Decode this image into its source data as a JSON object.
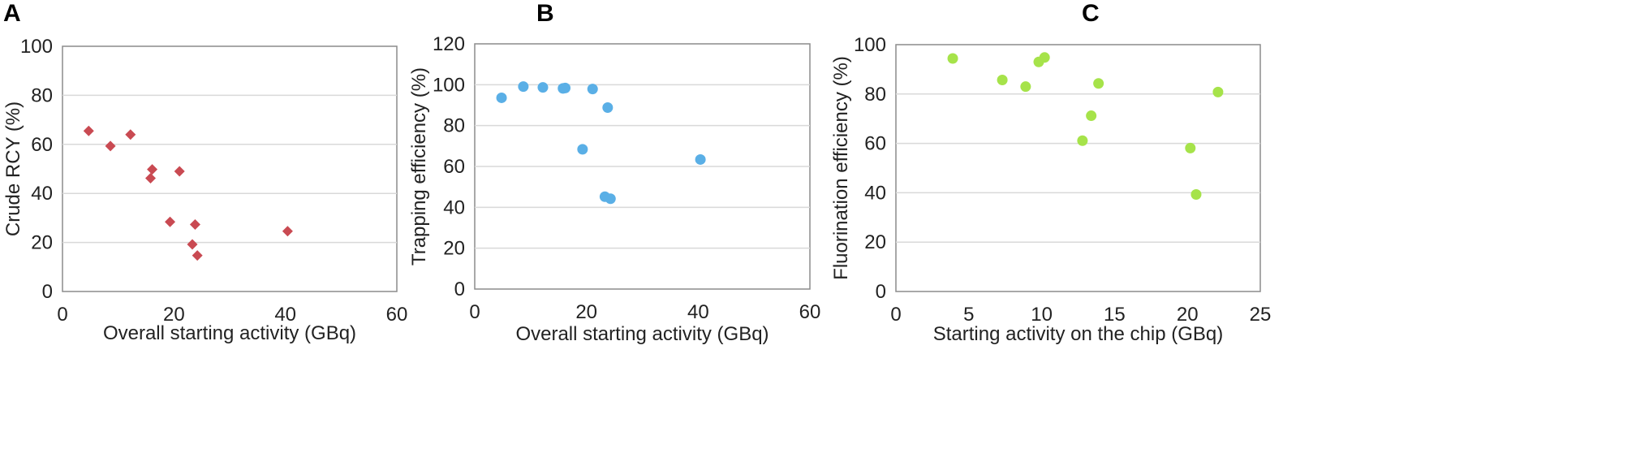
{
  "chart_data": [
    {
      "panel": "A",
      "type": "scatter",
      "marker": "diamond",
      "color": "#c94a52",
      "xlabel": "Overall starting activity (GBq)",
      "ylabel": "Crude RCY (%)",
      "xlim": [
        0,
        60
      ],
      "ylim": [
        0,
        100
      ],
      "xticks": [
        0,
        20,
        40,
        60
      ],
      "yticks": [
        0,
        20,
        40,
        60,
        80,
        100
      ],
      "grid": "horizontal",
      "points": [
        {
          "x": 4.7,
          "y": 65.5
        },
        {
          "x": 8.6,
          "y": 59.3
        },
        {
          "x": 12.2,
          "y": 64.0
        },
        {
          "x": 16.1,
          "y": 49.8
        },
        {
          "x": 15.8,
          "y": 46.2
        },
        {
          "x": 21.0,
          "y": 49.0
        },
        {
          "x": 19.3,
          "y": 28.4
        },
        {
          "x": 23.8,
          "y": 27.3
        },
        {
          "x": 23.3,
          "y": 19.2
        },
        {
          "x": 24.2,
          "y": 14.7
        },
        {
          "x": 40.4,
          "y": 24.6
        }
      ]
    },
    {
      "panel": "B",
      "type": "scatter",
      "marker": "circle",
      "color": "#5aafe6",
      "xlabel": "Overall starting activity (GBq)",
      "ylabel": "Trapping efficiency (%)",
      "xlim": [
        0,
        60
      ],
      "ylim": [
        0,
        120
      ],
      "xticks": [
        0,
        20,
        40,
        60
      ],
      "yticks": [
        0,
        20,
        40,
        60,
        80,
        100,
        120
      ],
      "grid": "horizontal",
      "points": [
        {
          "x": 4.8,
          "y": 93.6
        },
        {
          "x": 8.7,
          "y": 99.1
        },
        {
          "x": 12.2,
          "y": 98.7
        },
        {
          "x": 15.8,
          "y": 98.2
        },
        {
          "x": 16.2,
          "y": 98.4
        },
        {
          "x": 21.1,
          "y": 97.9
        },
        {
          "x": 23.8,
          "y": 88.8
        },
        {
          "x": 19.3,
          "y": 68.4
        },
        {
          "x": 23.3,
          "y": 45.2
        },
        {
          "x": 24.3,
          "y": 44.2
        },
        {
          "x": 40.4,
          "y": 63.4
        }
      ]
    },
    {
      "panel": "C",
      "type": "scatter",
      "marker": "circle",
      "color": "#a6e34a",
      "xlabel": "Starting activity on the chip (GBq)",
      "ylabel": "Fluorination efficiency (%)",
      "xlim": [
        0,
        25
      ],
      "ylim": [
        0,
        100
      ],
      "xticks": [
        0,
        5,
        10,
        15,
        20,
        25
      ],
      "yticks": [
        0,
        20,
        40,
        60,
        80,
        100
      ],
      "grid": "horizontal",
      "points": [
        {
          "x": 3.9,
          "y": 94.4
        },
        {
          "x": 7.3,
          "y": 85.7
        },
        {
          "x": 8.9,
          "y": 83.0
        },
        {
          "x": 9.8,
          "y": 93.0
        },
        {
          "x": 10.2,
          "y": 94.8
        },
        {
          "x": 13.9,
          "y": 84.3
        },
        {
          "x": 13.4,
          "y": 71.2
        },
        {
          "x": 12.8,
          "y": 61.1
        },
        {
          "x": 22.1,
          "y": 80.8
        },
        {
          "x": 20.2,
          "y": 58.1
        },
        {
          "x": 20.6,
          "y": 39.3
        }
      ]
    }
  ]
}
